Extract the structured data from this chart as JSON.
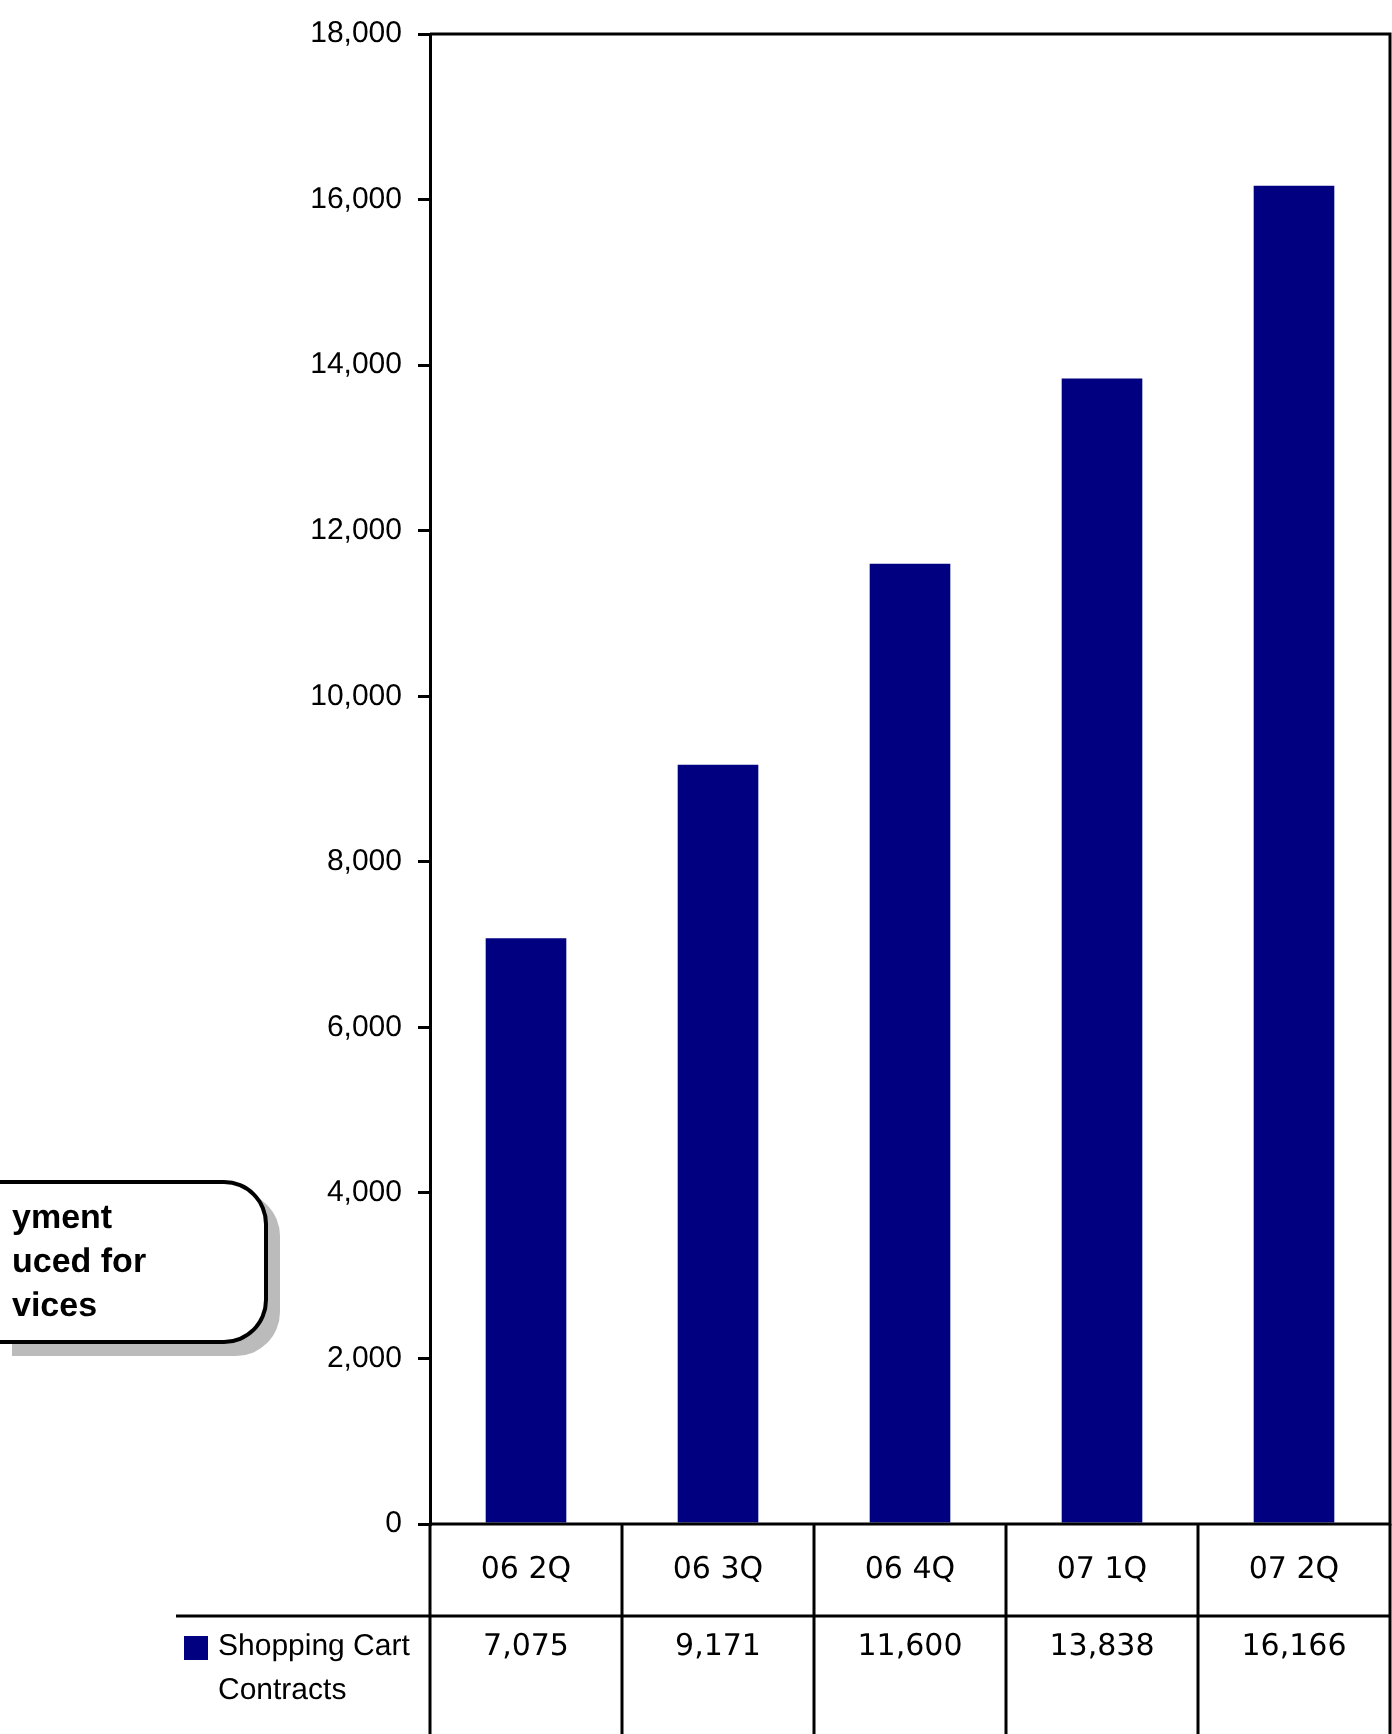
{
  "chart_data": {
    "type": "bar",
    "categories": [
      "06 2Q",
      "06 3Q",
      "06 4Q",
      "07 1Q",
      "07 2Q"
    ],
    "series": [
      {
        "name": "Shopping Cart Contracts",
        "color": "#000080",
        "values": [
          7075,
          9171,
          11600,
          13838,
          16166
        ],
        "value_labels": [
          "7,075",
          "9,171",
          "11,600",
          "13,838",
          "16,166"
        ]
      }
    ],
    "ylim": [
      0,
      18000
    ],
    "yticks": [
      {
        "value": 0,
        "label": "0"
      },
      {
        "value": 2000,
        "label": "2,000"
      },
      {
        "value": 4000,
        "label": "4,000"
      },
      {
        "value": 6000,
        "label": "6,000"
      },
      {
        "value": 8000,
        "label": "8,000"
      },
      {
        "value": 10000,
        "label": "10,000"
      },
      {
        "value": 12000,
        "label": "12,000"
      },
      {
        "value": 14000,
        "label": "14,000"
      },
      {
        "value": 16000,
        "label": "16,000"
      },
      {
        "value": 18000,
        "label": "18,000"
      }
    ],
    "annotations": [
      "yment\nuced for\nvices"
    ],
    "legend": "bottom left",
    "grid": false
  }
}
